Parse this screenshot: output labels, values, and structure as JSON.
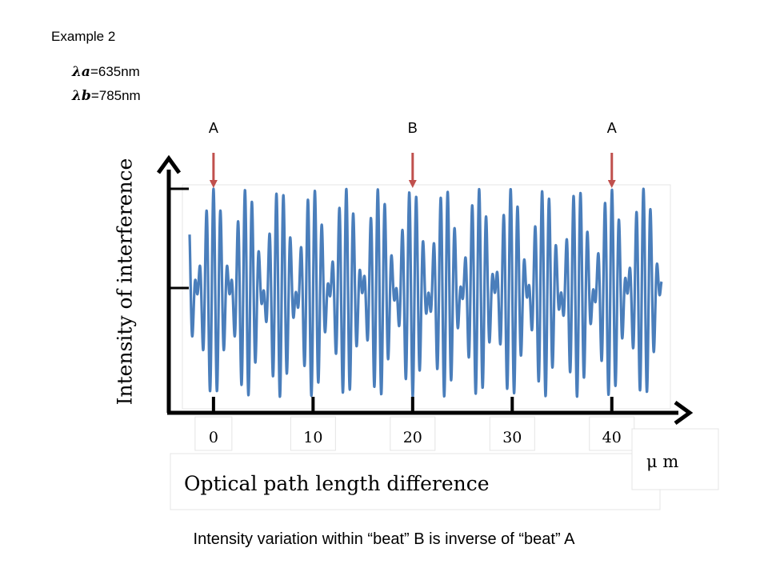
{
  "slide": {
    "title": "Example 2",
    "lambda_a": {
      "symbol": "λa",
      "value": "=635nm"
    },
    "lambda_b": {
      "symbol": "λb",
      "value": "=785nm"
    },
    "caption": "Intensity variation within “beat” B is inverse of “beat” A"
  },
  "chart_data": {
    "type": "line",
    "title": "",
    "xlabel": "Optical path length difference",
    "ylabel": "Intensity of interference",
    "x_unit": "μ m",
    "x_ticks": [
      0,
      10,
      20,
      30,
      40
    ],
    "x_tick_labels": [
      "0",
      "10",
      "20",
      "30",
      "40"
    ],
    "xlim": [
      -2.4,
      45
    ],
    "ylim": [
      -1,
      1
    ],
    "grid": false,
    "legend": "none",
    "series": [
      {
        "name": "",
        "color": "#4a7ebb",
        "wavelengths_nm": [
          635,
          785
        ],
        "function": "cos(2πx/λa) + cos(2πx/λb), x in μm"
      }
    ],
    "annotations": [
      {
        "label": "A",
        "x": 0,
        "color": "#c0504d"
      },
      {
        "label": "B",
        "x": 20,
        "color": "#c0504d"
      },
      {
        "label": "A",
        "x": 40,
        "color": "#c0504d"
      }
    ]
  }
}
